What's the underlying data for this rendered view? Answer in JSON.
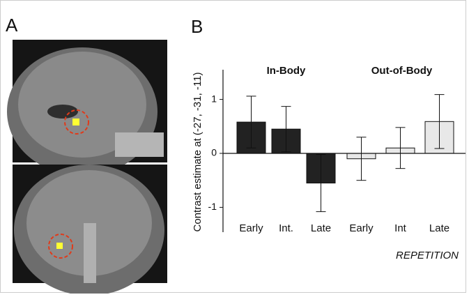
{
  "panel_a": {
    "label": "A"
  },
  "chart_data": {
    "type": "bar",
    "panel_label": "B",
    "ylabel": "Contrast estimate at (-27, -31, -11)",
    "xlabel": "REPETITION",
    "ylim": [
      -1.46,
      1.55
    ],
    "yticks": [
      -1,
      0,
      1
    ],
    "series": [
      {
        "name": "In-Body",
        "color": "#222222",
        "categories": [
          "Early",
          "Int.",
          "Late"
        ],
        "values": [
          0.58,
          0.45,
          -0.55
        ],
        "errors": [
          0.48,
          0.42,
          0.53
        ]
      },
      {
        "name": "Out-of-Body",
        "color": "#e8e8e8",
        "categories": [
          "Early",
          "Int",
          "Late"
        ],
        "values": [
          -0.1,
          0.1,
          0.59
        ],
        "errors": [
          0.4,
          0.38,
          0.5
        ]
      }
    ]
  }
}
